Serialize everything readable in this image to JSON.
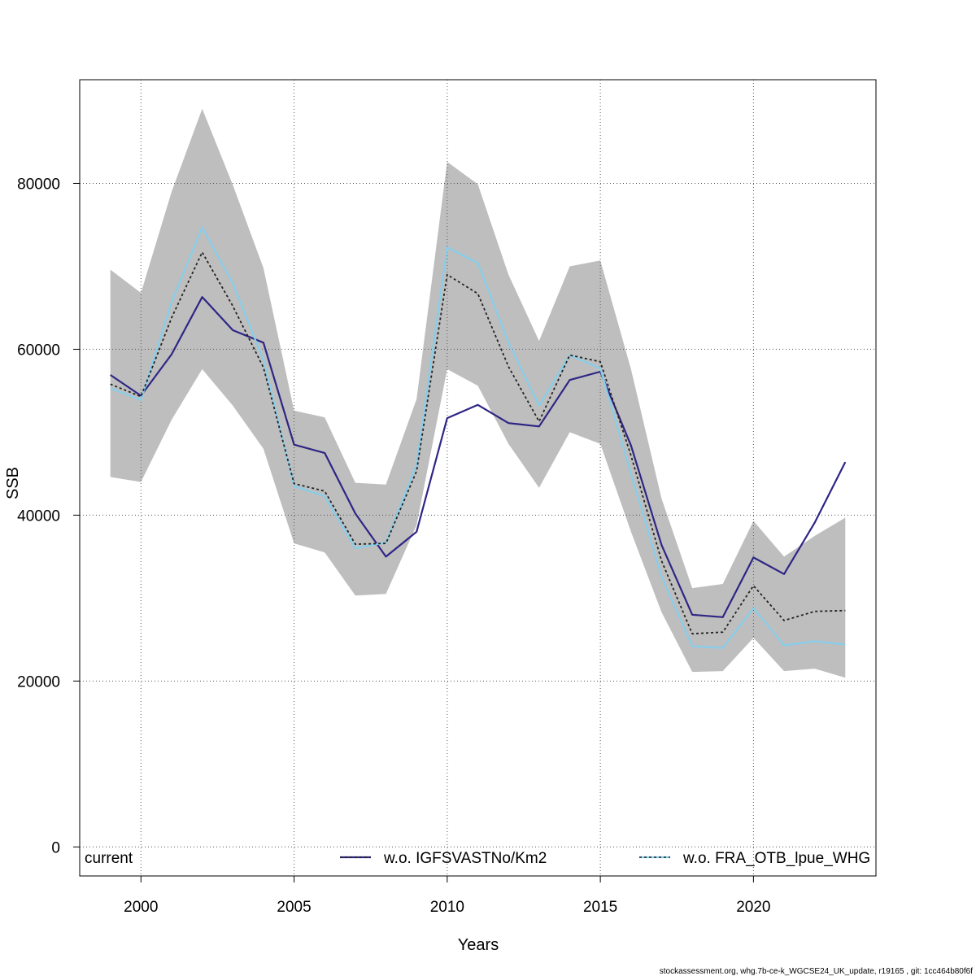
{
  "chart_data": {
    "type": "line",
    "xlabel": "Years",
    "ylabel": "SSB",
    "xlim": [
      1998,
      2024
    ],
    "ylim": [
      -3500,
      92500
    ],
    "x_ticks": [
      2000,
      2005,
      2010,
      2015,
      2020
    ],
    "y_ticks": [
      0,
      20000,
      40000,
      60000,
      80000
    ],
    "grid": true,
    "legend_placement": "bottom",
    "x": [
      1999,
      2000,
      2001,
      2002,
      2003,
      2004,
      2005,
      2006,
      2007,
      2008,
      2009,
      2010,
      2011,
      2012,
      2013,
      2014,
      2015,
      2016,
      2017,
      2018,
      2019,
      2020,
      2021,
      2022,
      2023
    ],
    "confidence_band": {
      "color": "#bebebe",
      "lower": [
        44600,
        44000,
        51500,
        57600,
        53200,
        48000,
        36600,
        35500,
        30300,
        30500,
        38800,
        57600,
        55600,
        48600,
        43300,
        50000,
        48600,
        38000,
        28300,
        21100,
        21200,
        25200,
        21200,
        21500,
        20400
      ],
      "upper": [
        69600,
        66800,
        79000,
        89000,
        79800,
        69800,
        52600,
        51800,
        43900,
        43700,
        54000,
        82600,
        79900,
        69000,
        61000,
        70000,
        70700,
        57600,
        42000,
        31200,
        31700,
        39300,
        35000,
        37500,
        39700
      ]
    },
    "series": [
      {
        "name": "current",
        "color": "#222222",
        "dashed": true,
        "values": [
          55800,
          54300,
          63800,
          71700,
          65200,
          57800,
          43800,
          42900,
          36500,
          36600,
          45300,
          69000,
          66700,
          57900,
          51300,
          59300,
          58500,
          47200,
          34500,
          25700,
          25900,
          31500,
          27300,
          28400,
          28500
        ]
      },
      {
        "name": "w.o. IGFSVASTNo/Km2",
        "color": "#2e2585",
        "dashed": false,
        "values": [
          56900,
          54400,
          59400,
          66300,
          62300,
          60800,
          48500,
          47500,
          40200,
          35000,
          38000,
          51700,
          53300,
          51100,
          50700,
          56300,
          57300,
          48400,
          36400,
          28000,
          27700,
          34900,
          32900,
          39100,
          46400
        ]
      },
      {
        "name": "w.o. FRA_OTB_lpue_WHG",
        "color": "#87ceeb",
        "dashed": false,
        "values": [
          55300,
          53900,
          65700,
          74700,
          67900,
          58700,
          43500,
          42300,
          36000,
          36700,
          46100,
          72300,
          70400,
          60800,
          53200,
          59300,
          57700,
          45000,
          32600,
          24200,
          24000,
          28800,
          24300,
          24800,
          24400
        ]
      }
    ]
  },
  "legend": {
    "items": [
      {
        "label": "current"
      },
      {
        "label": "w.o. IGFSVASTNo/Km2"
      },
      {
        "label": "w.o. FRA_OTB_lpue_WHG"
      }
    ]
  },
  "footer": {
    "text": "stockassessment.org, whg.7b-ce-k_WGCSE24_UK_update, r19165 , git: 1cc464b80f6f"
  }
}
